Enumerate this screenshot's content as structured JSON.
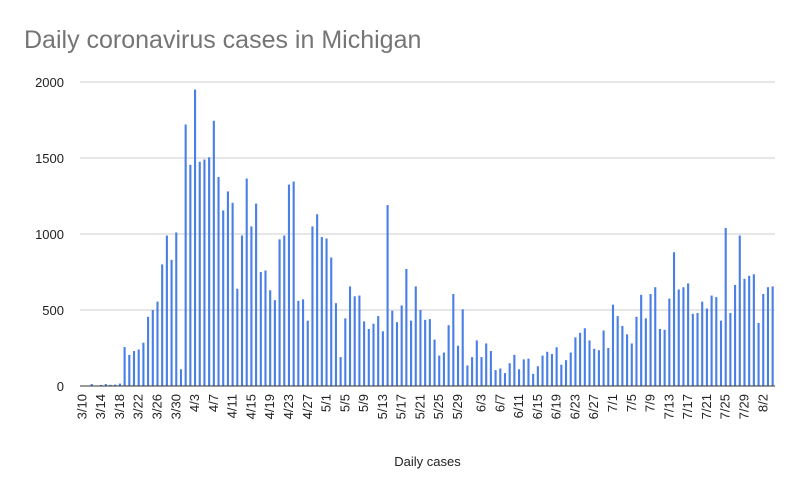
{
  "chart_data": {
    "type": "bar",
    "title": "Daily coronavirus cases in Michigan",
    "xlabel": "Daily cases",
    "ylabel": "",
    "ylim": [
      0,
      2000
    ],
    "yticks": [
      0,
      500,
      1000,
      1500,
      2000
    ],
    "grid": true,
    "legend": "none",
    "bar_color": "#4a7fe6",
    "grid_color": "#cccccc",
    "categories": [
      "3/10",
      "3/11",
      "3/12",
      "3/13",
      "3/14",
      "3/15",
      "3/16",
      "3/17",
      "3/18",
      "3/19",
      "3/20",
      "3/21",
      "3/22",
      "3/23",
      "3/24",
      "3/25",
      "3/26",
      "3/27",
      "3/28",
      "3/29",
      "3/30",
      "3/31",
      "4/1",
      "4/2",
      "4/3",
      "4/4",
      "4/5",
      "4/6",
      "4/7",
      "4/8",
      "4/9",
      "4/10",
      "4/11",
      "4/12",
      "4/13",
      "4/14",
      "4/15",
      "4/16",
      "4/17",
      "4/18",
      "4/19",
      "4/20",
      "4/21",
      "4/22",
      "4/23",
      "4/24",
      "4/25",
      "4/26",
      "4/27",
      "4/28",
      "4/29",
      "4/30",
      "5/1",
      "5/2",
      "5/3",
      "5/4",
      "5/5",
      "5/6",
      "5/7",
      "5/8",
      "5/9",
      "5/10",
      "5/11",
      "5/12",
      "5/13",
      "5/14",
      "5/15",
      "5/16",
      "5/17",
      "5/18",
      "5/19",
      "5/20",
      "5/21",
      "5/22",
      "5/23",
      "5/24",
      "5/25",
      "5/26",
      "5/27",
      "5/28",
      "5/29",
      "5/30",
      "5/31",
      "6/1",
      "6/2",
      "6/3",
      "6/4",
      "6/5",
      "6/6",
      "6/7",
      "6/8",
      "6/9",
      "6/10",
      "6/11",
      "6/12",
      "6/13",
      "6/14",
      "6/15",
      "6/16",
      "6/17",
      "6/18",
      "6/19",
      "6/20",
      "6/21",
      "6/22",
      "6/23",
      "6/24",
      "6/25",
      "6/26",
      "6/27",
      "6/28",
      "6/29",
      "6/30",
      "7/1",
      "7/2",
      "7/3",
      "7/4",
      "7/5",
      "7/6",
      "7/7",
      "7/8",
      "7/9",
      "7/10",
      "7/11",
      "7/12",
      "7/13",
      "7/14",
      "7/15",
      "7/16",
      "7/17",
      "7/18",
      "7/19",
      "7/20",
      "7/21",
      "7/22",
      "7/23",
      "7/24",
      "7/25",
      "7/26",
      "7/27",
      "7/28",
      "7/29",
      "7/30",
      "7/31",
      "8/1",
      "8/2",
      "8/3",
      "8/4"
    ],
    "values": [
      2,
      2,
      13,
      3,
      7,
      13,
      8,
      9,
      16,
      256,
      205,
      230,
      240,
      285,
      455,
      500,
      555,
      800,
      990,
      830,
      1010,
      110,
      1720,
      1455,
      1950,
      1475,
      1490,
      1505,
      1745,
      1375,
      1155,
      1280,
      1205,
      640,
      990,
      1365,
      1050,
      1200,
      750,
      760,
      630,
      565,
      965,
      990,
      1325,
      1345,
      560,
      570,
      430,
      1050,
      1130,
      980,
      970,
      845,
      545,
      190,
      445,
      655,
      590,
      595,
      425,
      375,
      410,
      460,
      360,
      1190,
      495,
      420,
      530,
      770,
      430,
      655,
      500,
      435,
      440,
      305,
      200,
      220,
      400,
      605,
      265,
      505,
      135,
      190,
      300,
      190,
      280,
      230,
      105,
      115,
      85,
      150,
      205,
      110,
      175,
      180,
      80,
      130,
      200,
      225,
      210,
      255,
      140,
      170,
      220,
      320,
      350,
      380,
      300,
      245,
      235,
      365,
      250,
      535,
      460,
      395,
      340,
      280,
      455,
      600,
      445,
      605,
      650,
      375,
      370,
      575,
      880,
      635,
      650,
      675,
      475,
      480,
      555,
      510,
      595,
      585,
      430,
      1040,
      480,
      665,
      990,
      705,
      725,
      735,
      415,
      605,
      650,
      655
    ],
    "x_tick_labels": [
      "3/10",
      "3/14",
      "3/18",
      "3/22",
      "3/26",
      "3/30",
      "4/3",
      "4/7",
      "4/11",
      "4/15",
      "4/19",
      "4/23",
      "4/27",
      "5/1",
      "5/5",
      "5/9",
      "5/13",
      "5/17",
      "5/21",
      "5/25",
      "5/29",
      "6/3",
      "6/7",
      "6/11",
      "6/15",
      "6/19",
      "6/23",
      "6/27",
      "7/1",
      "7/5",
      "7/9",
      "7/13",
      "7/17",
      "7/21",
      "7/25",
      "7/29",
      "8/2"
    ]
  }
}
